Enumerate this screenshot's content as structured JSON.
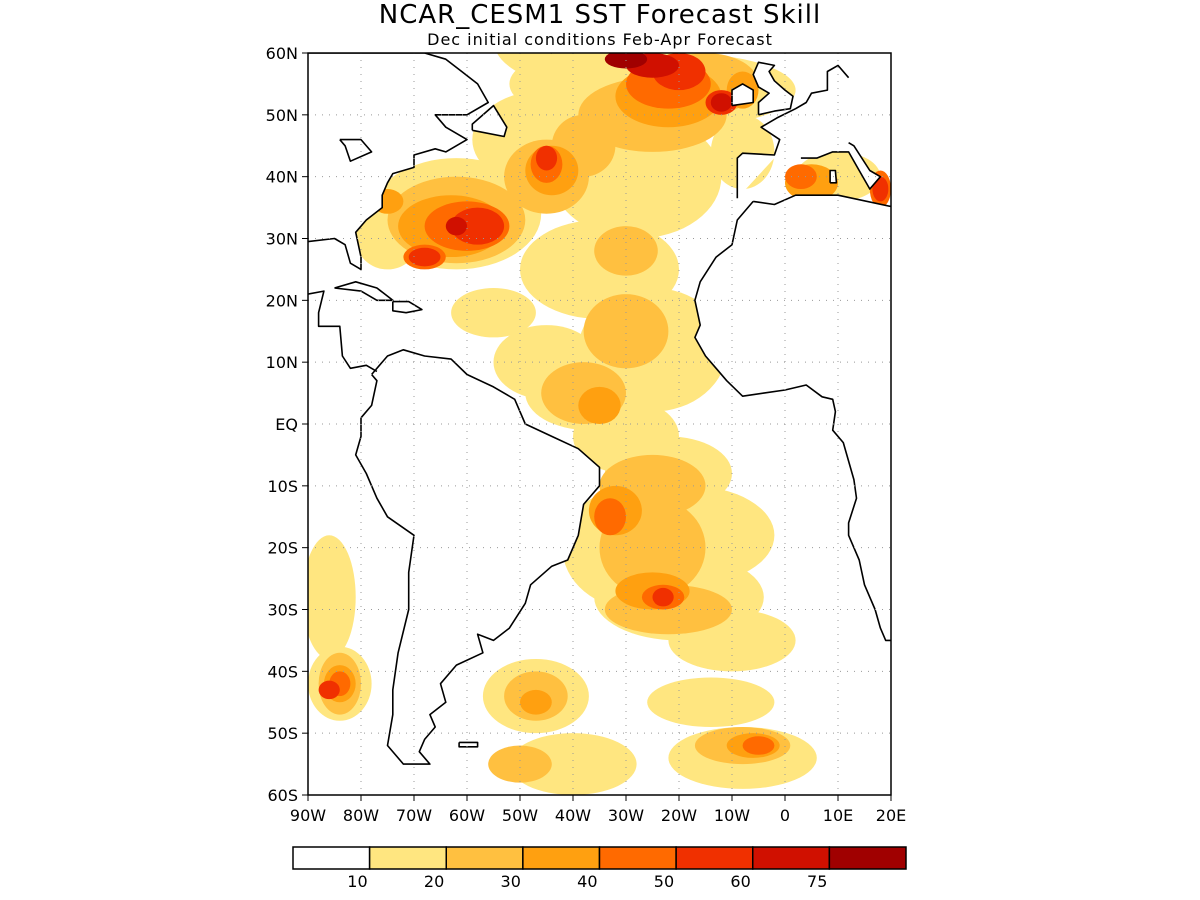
{
  "title": "NCAR_CESM1 SST Forecast Skill",
  "subtitle": "Dec initial conditions  Feb-Apr Forecast",
  "map": {
    "lon_range": [
      -90,
      20
    ],
    "lat_range": [
      -60,
      60
    ],
    "grid": "dotted",
    "lat_labels": [
      "60N",
      "50N",
      "40N",
      "30N",
      "20N",
      "10N",
      "EQ",
      "10S",
      "20S",
      "30S",
      "40S",
      "50S",
      "60S"
    ],
    "lon_labels": [
      "90W",
      "80W",
      "70W",
      "60W",
      "50W",
      "40W",
      "30W",
      "20W",
      "10W",
      "0",
      "10E",
      "20E"
    ]
  },
  "colorbar": {
    "colors": [
      "#ffffff",
      "#ffe680",
      "#ffc040",
      "#ffa010",
      "#ff6a00",
      "#f03000",
      "#d01000",
      "#a00000"
    ],
    "labels": [
      "10",
      "20",
      "30",
      "40",
      "50",
      "60",
      "75"
    ]
  },
  "colors": {
    "land_outline": "#000000",
    "grid": "#999999"
  }
}
